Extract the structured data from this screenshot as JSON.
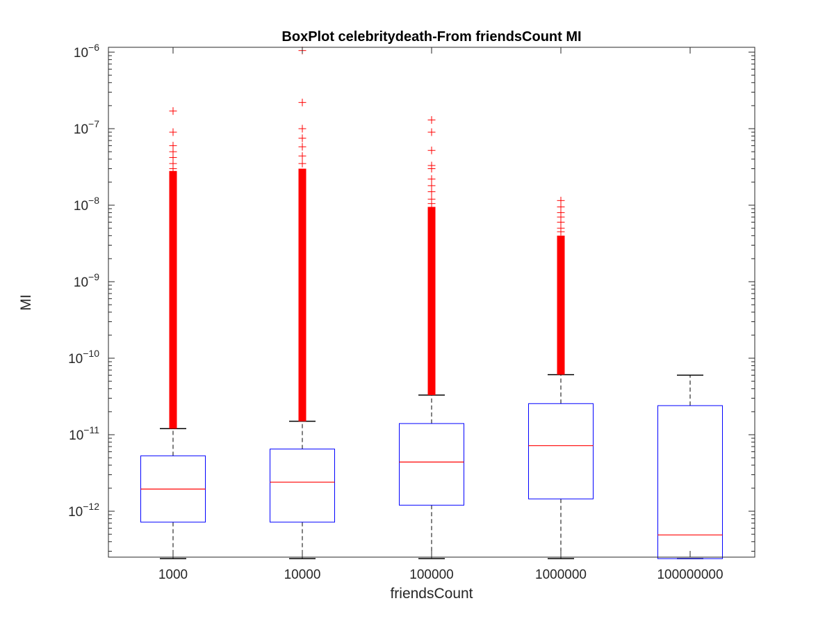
{
  "chart_data": {
    "type": "box",
    "title": "BoxPlot celebritydeath-From friendsCount MI",
    "xlabel": "friendsCount",
    "ylabel": "MI",
    "yscale": "log",
    "ylim": [
      2.4e-13,
      1.1e-06
    ],
    "ytick_exponents": [
      -12,
      -11,
      -10,
      -9,
      -8,
      -7,
      -6
    ],
    "ytick_base": "10",
    "grid": false,
    "categories": [
      "1000",
      "10000",
      "100000",
      "1000000",
      "100000000"
    ],
    "boxes": [
      {
        "category": "1000",
        "whisker_low": 2.4e-13,
        "q1": 7.2e-13,
        "median": 1.95e-12,
        "q3": 5.3e-12,
        "whisker_high": 1.2e-11,
        "outlier_range": [
          1.2e-11,
          2.8e-08
        ],
        "outliers": [
          1.7e-07,
          9e-08,
          6e-08,
          5e-08,
          4.2e-08,
          3.5e-08,
          3e-08,
          2.6e-09,
          2e-09,
          1.5e-09,
          1e-09,
          8e-10,
          6e-10,
          5.5e-10
        ]
      },
      {
        "category": "10000",
        "whisker_low": 2.4e-13,
        "q1": 7.2e-13,
        "median": 2.4e-12,
        "q3": 6.5e-12,
        "whisker_high": 1.5e-11,
        "outlier_range": [
          1.5e-11,
          3e-08
        ],
        "outliers": [
          1.05e-06,
          2.2e-07,
          1e-07,
          7.5e-08,
          5.8e-08,
          4.4e-08,
          3.5e-08,
          9e-10,
          5.5e-10
        ]
      },
      {
        "category": "100000",
        "whisker_low": 2.4e-13,
        "q1": 1.2e-12,
        "median": 4.4e-12,
        "q3": 1.4e-11,
        "whisker_high": 3.3e-11,
        "outlier_range": [
          3.3e-11,
          9.5e-09
        ],
        "outliers": [
          1.3e-07,
          9e-08,
          5.2e-08,
          3.3e-08,
          3e-08,
          2.2e-08,
          1.8e-08,
          1.5e-08,
          1.2e-08,
          1.05e-08,
          1e-09,
          8e-10,
          6e-10,
          5e-10,
          4e-10
        ]
      },
      {
        "category": "1000000",
        "whisker_low": 2.4e-13,
        "q1": 1.45e-12,
        "median": 7.2e-12,
        "q3": 2.55e-11,
        "whisker_high": 6.1e-11,
        "outlier_range": [
          6.1e-11,
          4e-09
        ],
        "outliers": [
          1.15e-08,
          9.5e-09,
          8e-09,
          7e-09,
          6e-09,
          5e-09,
          4.5e-09,
          2.5e-09,
          2e-09,
          1.6e-09,
          1.25e-09,
          1e-09,
          8e-10,
          6e-10,
          5e-10,
          4e-10,
          3.5e-10,
          2.5e-10,
          2.2e-10
        ]
      },
      {
        "category": "100000000",
        "whisker_low": 2.4e-13,
        "q1": 2.4e-13,
        "median": 4.9e-13,
        "q3": 2.4e-11,
        "whisker_high": 6e-11,
        "outlier_range": null,
        "outliers": []
      }
    ],
    "colors": {
      "box": "#0000ff",
      "median": "#ff0000",
      "whisker": "#000000",
      "outlier": "#ff0000",
      "axis": "#262626"
    }
  }
}
